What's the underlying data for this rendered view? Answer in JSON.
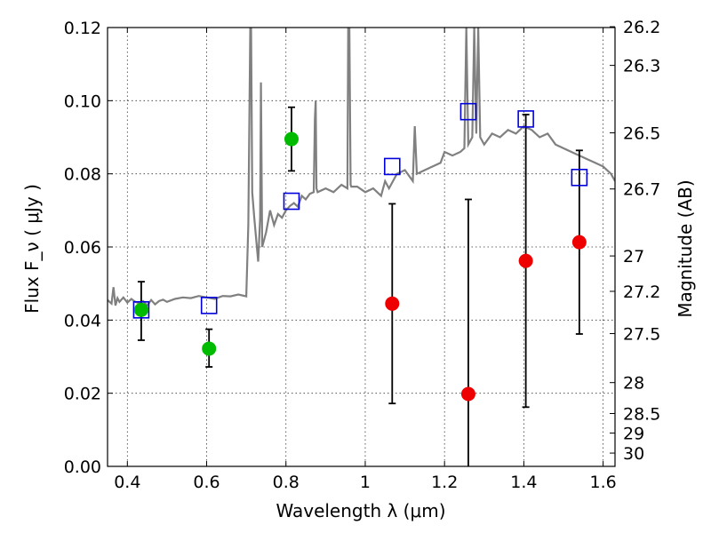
{
  "chart_data": {
    "type": "scatter",
    "title": "",
    "xlabel": "Wavelength  λ (μm)",
    "ylabel": "Flux  F_ν  ( μJy )",
    "ylabel_right": "Magnitude (AB)",
    "xlim": [
      0.35,
      1.63
    ],
    "ylim": [
      0,
      0.12
    ],
    "grid": true,
    "x_ticks": [
      0.4,
      0.6,
      0.8,
      1.0,
      1.2,
      1.4,
      1.6
    ],
    "x_tick_labels": [
      "0.4",
      "0.6",
      "0.8",
      "1",
      "1.2",
      "1.4",
      "1.6"
    ],
    "y_ticks": [
      0.0,
      0.02,
      0.04,
      0.06,
      0.08,
      0.1,
      0.12
    ],
    "y_tick_labels": [
      "0.00",
      "0.02",
      "0.04",
      "0.06",
      "0.08",
      "0.10",
      "0.12"
    ],
    "mag_ticks": [
      "26.2",
      "26.3",
      "26.5",
      "26.7",
      "27",
      "27.2",
      "27.5",
      "28",
      "28.5",
      "29",
      "30"
    ],
    "colors": {
      "spectrum": "#808080",
      "green": "#00bb00",
      "red": "#ee0000",
      "model_box": "#0000dd",
      "errorbar": "#000000"
    },
    "series": [
      {
        "kind": "green_points",
        "points": [
          {
            "x": 0.435,
            "y": 0.0428,
            "lo": 0.0345,
            "hi": 0.0505
          },
          {
            "x": 0.606,
            "y": 0.0322,
            "lo": 0.0272,
            "hi": 0.0375
          },
          {
            "x": 0.814,
            "y": 0.0895,
            "lo": 0.0808,
            "hi": 0.0982
          }
        ]
      },
      {
        "kind": "red_points",
        "points": [
          {
            "x": 1.068,
            "y": 0.0445,
            "lo": 0.0172,
            "hi": 0.0718
          },
          {
            "x": 1.26,
            "y": 0.0198,
            "lo": 0.0,
            "hi": 0.073
          },
          {
            "x": 1.405,
            "y": 0.0562,
            "lo": 0.0162,
            "hi": 0.0962
          },
          {
            "x": 1.54,
            "y": 0.0613,
            "lo": 0.0362,
            "hi": 0.0864
          }
        ]
      },
      {
        "kind": "model_boxes",
        "points": [
          {
            "x": 0.435,
            "y": 0.0428
          },
          {
            "x": 0.606,
            "y": 0.044
          },
          {
            "x": 0.814,
            "y": 0.0725
          },
          {
            "x": 1.068,
            "y": 0.082
          },
          {
            "x": 1.26,
            "y": 0.097
          },
          {
            "x": 1.405,
            "y": 0.095
          },
          {
            "x": 1.54,
            "y": 0.079
          }
        ]
      },
      {
        "kind": "spectrum",
        "x": [
          0.35,
          0.36,
          0.365,
          0.37,
          0.375,
          0.38,
          0.39,
          0.4,
          0.41,
          0.42,
          0.43,
          0.44,
          0.45,
          0.46,
          0.47,
          0.48,
          0.49,
          0.5,
          0.52,
          0.54,
          0.56,
          0.58,
          0.6,
          0.62,
          0.64,
          0.66,
          0.68,
          0.7,
          0.705,
          0.71,
          0.712,
          0.715,
          0.72,
          0.73,
          0.735,
          0.737,
          0.74,
          0.75,
          0.76,
          0.77,
          0.78,
          0.79,
          0.8,
          0.81,
          0.82,
          0.83,
          0.84,
          0.85,
          0.86,
          0.87,
          0.873,
          0.875,
          0.877,
          0.88,
          0.9,
          0.92,
          0.94,
          0.955,
          0.957,
          0.96,
          0.963,
          0.965,
          0.98,
          1.0,
          1.02,
          1.04,
          1.05,
          1.06,
          1.08,
          1.1,
          1.12,
          1.125,
          1.13,
          1.15,
          1.17,
          1.19,
          1.2,
          1.22,
          1.24,
          1.25,
          1.255,
          1.26,
          1.27,
          1.275,
          1.28,
          1.285,
          1.29,
          1.3,
          1.32,
          1.34,
          1.36,
          1.38,
          1.4,
          1.42,
          1.44,
          1.46,
          1.48,
          1.5,
          1.52,
          1.54,
          1.56,
          1.58,
          1.6,
          1.62,
          1.63
        ],
        "y": [
          0.0455,
          0.0445,
          0.049,
          0.044,
          0.046,
          0.045,
          0.0462,
          0.0448,
          0.0458,
          0.045,
          0.0446,
          0.0452,
          0.044,
          0.0455,
          0.0443,
          0.0452,
          0.0456,
          0.045,
          0.0458,
          0.0462,
          0.046,
          0.0466,
          0.0462,
          0.0458,
          0.0466,
          0.0465,
          0.047,
          0.0465,
          0.066,
          0.12,
          0.12,
          0.075,
          0.068,
          0.056,
          0.068,
          0.105,
          0.06,
          0.064,
          0.07,
          0.066,
          0.069,
          0.068,
          0.07,
          0.0712,
          0.072,
          0.071,
          0.074,
          0.073,
          0.0745,
          0.075,
          0.095,
          0.1,
          0.076,
          0.075,
          0.076,
          0.075,
          0.077,
          0.076,
          0.12,
          0.12,
          0.077,
          0.0765,
          0.0765,
          0.075,
          0.076,
          0.074,
          0.078,
          0.076,
          0.08,
          0.081,
          0.078,
          0.093,
          0.08,
          0.081,
          0.082,
          0.083,
          0.086,
          0.085,
          0.086,
          0.087,
          0.12,
          0.088,
          0.09,
          0.12,
          0.091,
          0.12,
          0.09,
          0.088,
          0.091,
          0.09,
          0.092,
          0.091,
          0.093,
          0.092,
          0.09,
          0.091,
          0.088,
          0.087,
          0.086,
          0.085,
          0.084,
          0.083,
          0.082,
          0.08,
          0.078
        ]
      }
    ]
  }
}
